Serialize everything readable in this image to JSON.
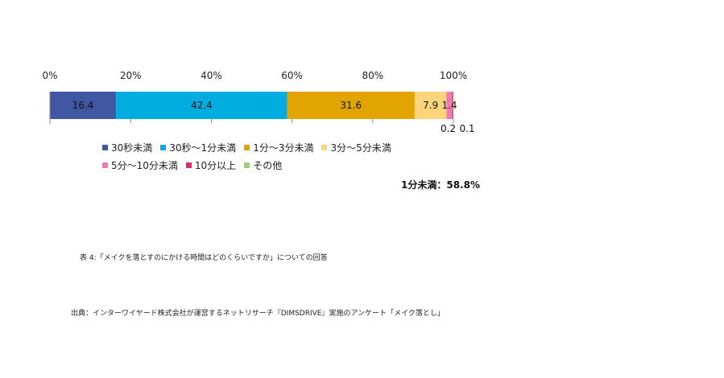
{
  "chart_data": {
    "type": "bar",
    "orientation": "horizontal",
    "stacked": true,
    "x_ticks": [
      "0%",
      "20%",
      "40%",
      "60%",
      "80%",
      "100%"
    ],
    "xlim": [
      0,
      100
    ],
    "grid": false,
    "legend_placement": "bottom",
    "series": [
      {
        "name": "30秒未満",
        "value": 16.4,
        "label": "16.4",
        "color": "#4257a4"
      },
      {
        "name": "30秒～1分未満",
        "value": 42.4,
        "label": "42.4",
        "color": "#00ade0"
      },
      {
        "name": "1分～3分未満",
        "value": 31.6,
        "label": "31.6",
        "color": "#e2a400"
      },
      {
        "name": "3分～5分未満",
        "value": 7.9,
        "label": "7.9",
        "color": "#fcd57a"
      },
      {
        "name": "5分～10分未満",
        "value": 1.4,
        "label": "1.4",
        "color": "#f277b2"
      },
      {
        "name": "10分以上",
        "value": 0.2,
        "label": "0.2",
        "color": "#e0267e"
      },
      {
        "name": "その他",
        "value": 0.1,
        "label": "0.1",
        "color": "#9ccf7a"
      }
    ]
  },
  "summary": "1分未満：58.8%",
  "caption": "表 4:「メイクを落とすのにかける時間はどのくらいですか」についての回答",
  "source": "出典：インターワイヤード株式会社が運営するネットリサーチ『DIMSDRIVE』実施のアンケート「メイク落とし」"
}
